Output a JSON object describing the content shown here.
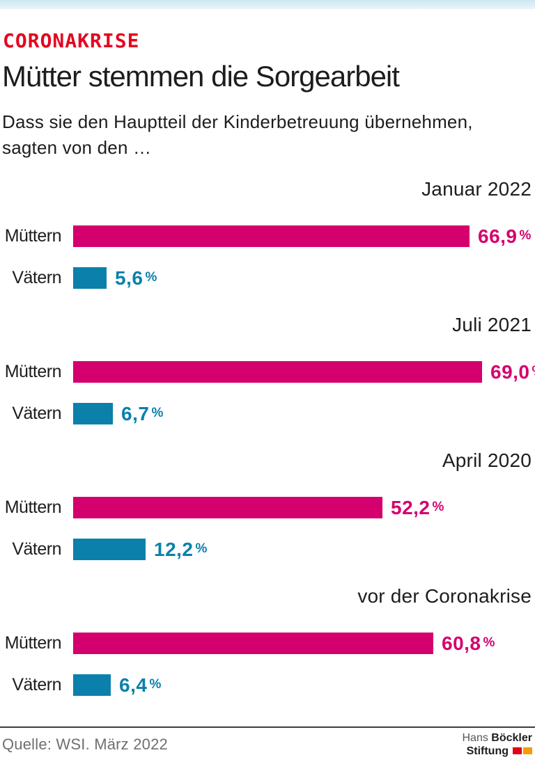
{
  "accent": {
    "topbar_color": "#cde6f0"
  },
  "header": {
    "kicker": "CORONAKRISE",
    "kicker_color": "#e40521",
    "title": "Mütter stemmen die Sorgearbeit",
    "subtitle_line1": "Dass sie den Hauptteil der Kinderbetreuung übernehmen,",
    "subtitle_line2": "sagten von den …"
  },
  "chart_data": {
    "type": "bar",
    "orientation": "horizontal",
    "unit": "%",
    "xlim": [
      0,
      69
    ],
    "grid": false,
    "legend": false,
    "series_names": [
      "Müttern",
      "Vätern"
    ],
    "colors": {
      "mothers": "#d4006e",
      "fathers": "#0b80ab"
    },
    "groups": [
      {
        "period": "Januar 2022",
        "bars": [
          {
            "category": "Müttern",
            "value": 66.9,
            "display": "66,9"
          },
          {
            "category": "Vätern",
            "value": 5.6,
            "display": "5,6"
          }
        ]
      },
      {
        "period": "Juli 2021",
        "bars": [
          {
            "category": "Müttern",
            "value": 69.0,
            "display": "69,0"
          },
          {
            "category": "Vätern",
            "value": 6.7,
            "display": "6,7"
          }
        ]
      },
      {
        "period": "April 2020",
        "bars": [
          {
            "category": "Müttern",
            "value": 52.2,
            "display": "52,2"
          },
          {
            "category": "Vätern",
            "value": 12.2,
            "display": "12,2"
          }
        ]
      },
      {
        "period": "vor der Coronakrise",
        "bars": [
          {
            "category": "Müttern",
            "value": 60.8,
            "display": "60,8"
          },
          {
            "category": "Vätern",
            "value": 6.4,
            "display": "6,4"
          }
        ]
      }
    ]
  },
  "footer": {
    "source": "Quelle: WSI. März 2022",
    "logo": {
      "line1_light": "Hans",
      "line1_bold": "Böckler",
      "line2_bold": "Stiftung",
      "square_colors": [
        "#e2001a",
        "#f59c00"
      ]
    }
  }
}
